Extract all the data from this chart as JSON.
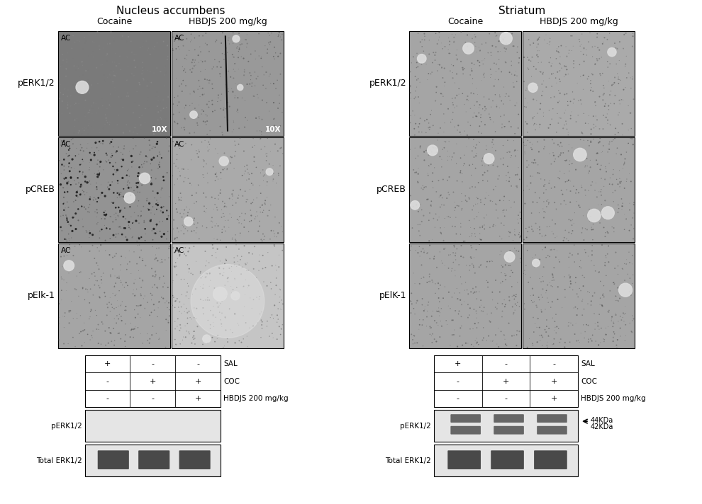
{
  "title_left": "Nucleus accumbens",
  "title_right": "Striatum",
  "col_headers_left": [
    "Cocaine",
    "HBDJS 200 mg/kg"
  ],
  "col_headers_right": [
    "Cocaine",
    "HBDJS 200 mg/kg"
  ],
  "row_labels_left": [
    "pERK1/2",
    "pCREB",
    "pElk-1"
  ],
  "row_labels_right": [
    "pERK1/2",
    "pCREB",
    "pElK-1"
  ],
  "ac_label": "AC",
  "magnification": "10X",
  "western_label_perk": "pERK1/2",
  "western_label_total": "Total ERK1/2",
  "table_labels": [
    "SAL",
    "COC",
    "HBDJS 200 mg/kg"
  ],
  "table_data": [
    [
      "+",
      "-",
      "-"
    ],
    [
      "-",
      "+",
      "+"
    ],
    [
      "-",
      "-",
      "+"
    ]
  ],
  "kda_labels": [
    "44KDa",
    "42KDa"
  ],
  "bg_color": "#ffffff"
}
